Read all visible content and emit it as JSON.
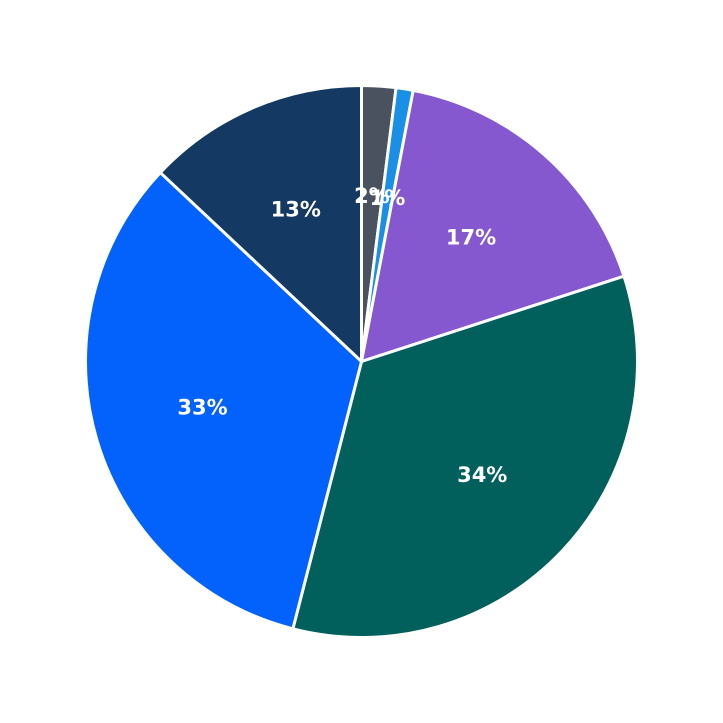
{
  "chart_data": {
    "type": "pie",
    "title": "",
    "start_angle_deg": 90,
    "direction": "clockwise",
    "slices": [
      {
        "label": "2%",
        "value": 2,
        "color": "#4a5260"
      },
      {
        "label": "1%",
        "value": 1,
        "color": "#1a8fe6"
      },
      {
        "label": "17%",
        "value": 17,
        "color": "#8658cf"
      },
      {
        "label": "34%",
        "value": 34,
        "color": "#015f5c"
      },
      {
        "label": "33%",
        "value": 33,
        "color": "#0362fc"
      },
      {
        "label": "13%",
        "value": 13,
        "color": "#143962"
      }
    ]
  }
}
